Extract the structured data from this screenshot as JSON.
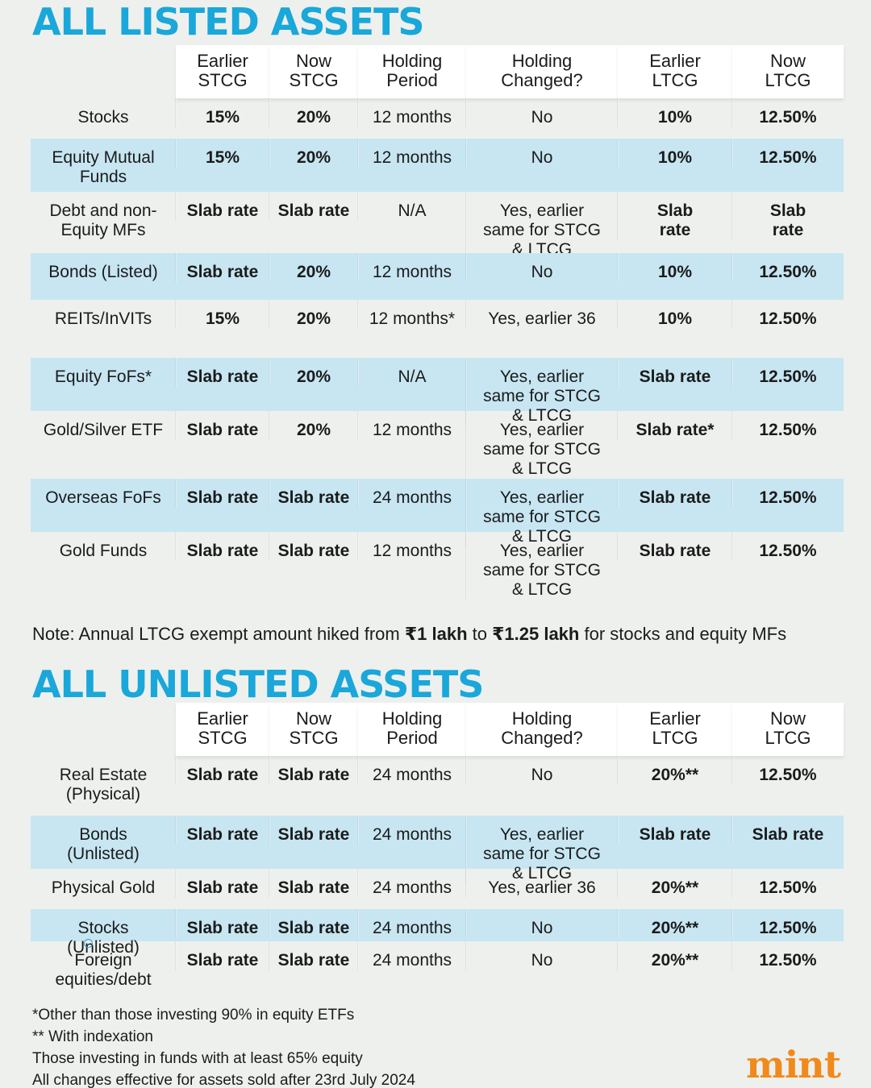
{
  "listed": {
    "title": "ALL LISTED ASSETS",
    "headers": [
      "Earlier\nSTCG",
      "Now\nSTCG",
      "Holding\nPeriod",
      "Holding\nChanged?",
      "Earlier\nLTCG",
      "Now\nLTCG"
    ],
    "rows": [
      {
        "asset": "Stocks",
        "earlier_stcg": "15%",
        "now_stcg": "20%",
        "holding_period": "12 months",
        "holding_changed": "No",
        "earlier_ltcg": "10%",
        "now_ltcg": "12.50%"
      },
      {
        "asset": "Equity Mutual Funds",
        "earlier_stcg": "15%",
        "now_stcg": "20%",
        "holding_period": "12 months",
        "holding_changed": "No",
        "earlier_ltcg": "10%",
        "now_ltcg": "12.50%"
      },
      {
        "asset": "Debt and non-Equity MFs",
        "earlier_stcg": "Slab rate",
        "now_stcg": "Slab rate",
        "holding_period": "N/A",
        "holding_changed": "Yes, earlier same for STCG & LTCG",
        "earlier_ltcg": "Slab rate",
        "now_ltcg": "Slab rate"
      },
      {
        "asset": "Bonds (Listed)",
        "earlier_stcg": "Slab rate",
        "now_stcg": "20%",
        "holding_period": "12 months",
        "holding_changed": "No",
        "earlier_ltcg": "10%",
        "now_ltcg": "12.50%"
      },
      {
        "asset": "REITs/InVITs",
        "earlier_stcg": "15%",
        "now_stcg": "20%",
        "holding_period": "12 months*",
        "holding_changed": "Yes, earlier 36",
        "earlier_ltcg": "10%",
        "now_ltcg": "12.50%"
      },
      {
        "asset": "Equity FoFs*",
        "earlier_stcg": "Slab rate",
        "now_stcg": "20%",
        "holding_period": "N/A",
        "holding_changed": "Yes, earlier same for STCG & LTCG",
        "earlier_ltcg": "Slab rate",
        "now_ltcg": "12.50%"
      },
      {
        "asset": "Gold/Silver ETF",
        "earlier_stcg": "Slab rate",
        "now_stcg": "20%",
        "holding_period": "12 months",
        "holding_changed": "Yes, earlier same for STCG & LTCG",
        "earlier_ltcg": "Slab rate*",
        "now_ltcg": "12.50%"
      },
      {
        "asset": "Overseas FoFs",
        "earlier_stcg": "Slab rate",
        "now_stcg": "Slab rate",
        "holding_period": "24 months",
        "holding_changed": "Yes, earlier same for STCG & LTCG",
        "earlier_ltcg": "Slab rate",
        "now_ltcg": "12.50%"
      },
      {
        "asset": "Gold Funds",
        "earlier_stcg": "Slab rate",
        "now_stcg": "Slab rate",
        "holding_period": "12 months",
        "holding_changed": "Yes, earlier same for STCG & LTCG",
        "earlier_ltcg": "Slab rate",
        "now_ltcg": "12.50%"
      }
    ]
  },
  "note": {
    "prefix": "Note: Annual LTCG exempt amount hiked from ",
    "from": "₹1 lakh",
    "mid": " to ",
    "to": "₹1.25 lakh",
    "suffix": " for stocks and equity MFs"
  },
  "unlisted": {
    "title": "ALL UNLISTED ASSETS",
    "headers": [
      "Earlier\nSTCG",
      "Now\nSTCG",
      "Holding\nPeriod",
      "Holding\nChanged?",
      "Earlier\nLTCG",
      "Now\nLTCG"
    ],
    "rows": [
      {
        "asset": "Real Estate (Physical)",
        "earlier_stcg": "Slab rate",
        "now_stcg": "Slab rate",
        "holding_period": "24 months",
        "holding_changed": "No",
        "earlier_ltcg": "20%**",
        "now_ltcg": "12.50%"
      },
      {
        "asset": "Bonds (Unlisted)",
        "earlier_stcg": "Slab rate",
        "now_stcg": "Slab rate",
        "holding_period": "24 months",
        "holding_changed": "Yes, earlier same for STCG & LTCG",
        "earlier_ltcg": "Slab rate",
        "now_ltcg": "Slab rate"
      },
      {
        "asset": "Physical Gold",
        "earlier_stcg": "Slab rate",
        "now_stcg": "Slab rate",
        "holding_period": "24 months",
        "holding_changed": "Yes, earlier 36",
        "earlier_ltcg": "20%**",
        "now_ltcg": "12.50%"
      },
      {
        "asset": "Stocks (Unlisted)",
        "earlier_stcg": "Slab rate",
        "now_stcg": "Slab rate",
        "holding_period": "24 months",
        "holding_changed": "No",
        "earlier_ltcg": "20%**",
        "now_ltcg": "12.50%"
      },
      {
        "asset": "Foreign equities/debt",
        "earlier_stcg": "Slab rate",
        "now_stcg": "Slab rate",
        "holding_period": "24 months",
        "holding_changed": "No",
        "earlier_ltcg": "20%**",
        "now_ltcg": "12.50%"
      }
    ]
  },
  "footnotes": [
    "*Other than those investing 90% in equity ETFs",
    "** With indexation",
    "Those investing in funds with at least 65% equity",
    "All changes effective for assets sold after 23rd July 2024"
  ],
  "logo": "mint",
  "colors": {
    "accent": "#1aa7d9",
    "shade": "#c7e6f2",
    "logo": "#f08a1c"
  }
}
